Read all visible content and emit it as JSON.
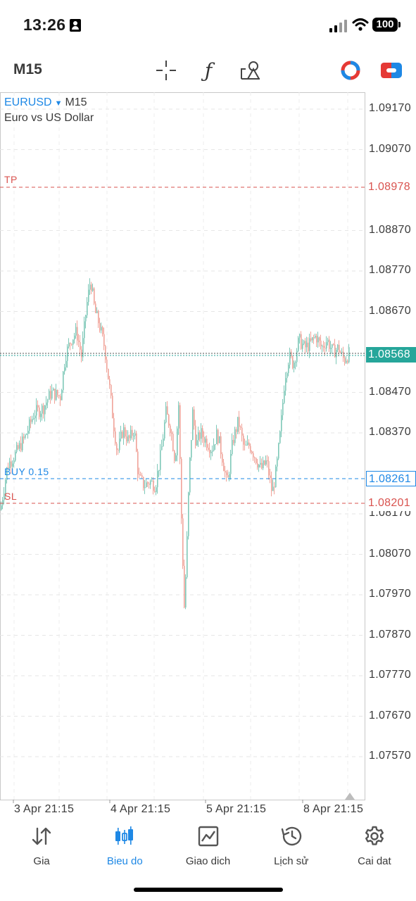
{
  "status_bar": {
    "time": "13:26",
    "battery": "100"
  },
  "toolbar": {
    "timeframe": "M15",
    "icons": [
      "crosshair-icon",
      "function-icon",
      "objects-icon",
      "one-click-trading-icon",
      "trade-icon"
    ]
  },
  "chart": {
    "symbol": "EURUSD",
    "timeframe": "M15",
    "description": "Euro vs US Dollar",
    "price_labels": [
      "1.09170",
      "1.09070",
      "1.08870",
      "1.08770",
      "1.08670",
      "1.08470",
      "1.08370",
      "1.08170",
      "1.08070",
      "1.07970",
      "1.07870",
      "1.07770",
      "1.07670",
      "1.07570"
    ],
    "time_labels": [
      "3 Apr 21:15",
      "4 Apr 21:15",
      "5 Apr 21:15",
      "8 Apr 21:15"
    ],
    "tp": {
      "label": "TP",
      "price": "1.08978"
    },
    "sl": {
      "label": "SL",
      "price": "1.08201"
    },
    "position": {
      "label": "BUY 0.15",
      "price": "1.08261"
    },
    "current_price": "1.08568",
    "colors": {
      "bull": "#7ec8b8",
      "bear": "#f0a399",
      "tp_sl": "#d9534f",
      "position": "#1e88e5",
      "current": "#26a69a"
    }
  },
  "bottom_nav": [
    {
      "label": "Gia",
      "icon": "quotes-arrows-icon",
      "active": false
    },
    {
      "label": "Bieu do",
      "icon": "candlestick-chart-icon",
      "active": true
    },
    {
      "label": "Giao dich",
      "icon": "trade-chart-icon",
      "active": false
    },
    {
      "label": "Lịch sử",
      "icon": "history-clock-icon",
      "active": false
    },
    {
      "label": "Cai dat",
      "icon": "settings-gear-icon",
      "active": false
    }
  ]
}
